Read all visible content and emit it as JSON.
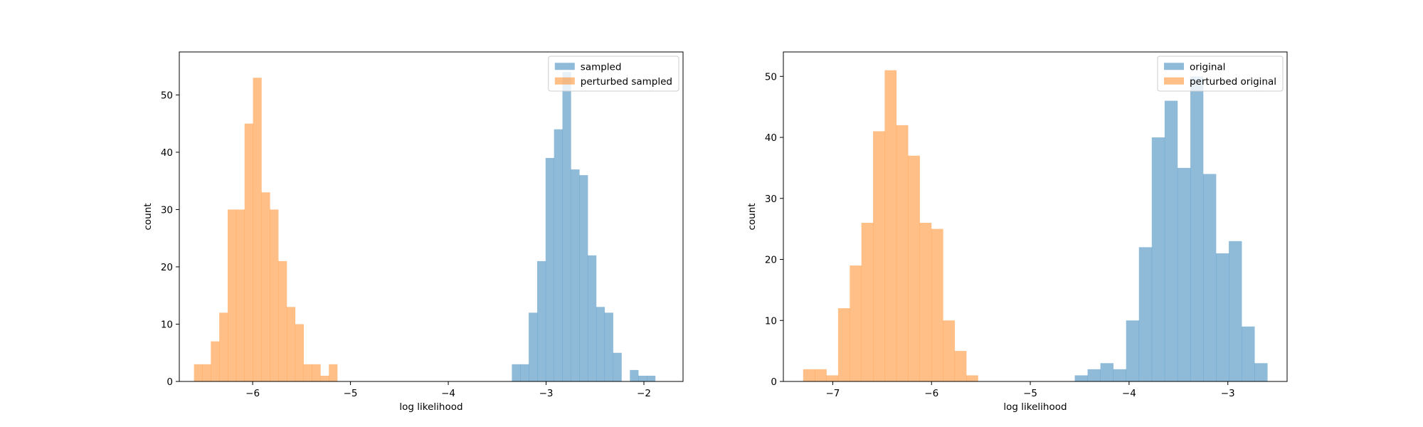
{
  "chart_data": [
    {
      "type": "histogram",
      "xlabel": "log likelihood",
      "ylabel": "count",
      "xlim": [
        -6.75,
        -1.6
      ],
      "ylim": [
        0,
        57.5
      ],
      "xticks": [
        -6,
        -5,
        -4,
        -3,
        -2
      ],
      "xtick_labels": [
        "−6",
        "−5",
        "−4",
        "−3",
        "−2"
      ],
      "yticks": [
        0,
        10,
        20,
        30,
        40,
        50
      ],
      "ytick_labels": [
        "0",
        "10",
        "20",
        "30",
        "40",
        "50"
      ],
      "legend_position": "top-right",
      "series": [
        {
          "name": "sampled",
          "color": "#1f77b4",
          "alpha": 0.5,
          "bin_start": -3.35,
          "bin_width": 0.0862,
          "values": [
            3,
            3,
            12,
            21,
            39,
            44,
            54,
            37,
            36,
            22,
            13,
            12,
            5,
            0,
            2,
            1,
            1
          ]
        },
        {
          "name": "perturbed sampled",
          "color": "#ff7f0e",
          "alpha": 0.5,
          "bin_start": -6.6,
          "bin_width": 0.0862,
          "values": [
            3,
            3,
            7,
            12,
            30,
            30,
            45,
            53,
            33,
            30,
            21,
            13,
            10,
            3,
            3,
            1,
            3
          ]
        }
      ]
    },
    {
      "type": "histogram",
      "xlabel": "log likelihood",
      "ylabel": "count",
      "xlim": [
        -7.5,
        -2.4
      ],
      "ylim": [
        0,
        54
      ],
      "xticks": [
        -7,
        -6,
        -5,
        -4,
        -3
      ],
      "xtick_labels": [
        "−7",
        "−6",
        "−5",
        "−4",
        "−3"
      ],
      "yticks": [
        0,
        10,
        20,
        30,
        40,
        50
      ],
      "ytick_labels": [
        "0",
        "10",
        "20",
        "30",
        "40",
        "50"
      ],
      "legend_position": "top-right",
      "series": [
        {
          "name": "original",
          "color": "#1f77b4",
          "alpha": 0.5,
          "bin_start": -4.55,
          "bin_width": 0.13,
          "values": [
            1,
            2,
            3,
            2,
            10,
            22,
            40,
            46,
            35,
            50,
            34,
            21,
            23,
            9,
            3
          ]
        },
        {
          "name": "perturbed original",
          "color": "#ff7f0e",
          "alpha": 0.5,
          "bin_start": -7.3,
          "bin_width": 0.118,
          "values": [
            2,
            2,
            1,
            12,
            19,
            26,
            41,
            51,
            42,
            37,
            26,
            25,
            10,
            5,
            1
          ]
        }
      ]
    }
  ]
}
